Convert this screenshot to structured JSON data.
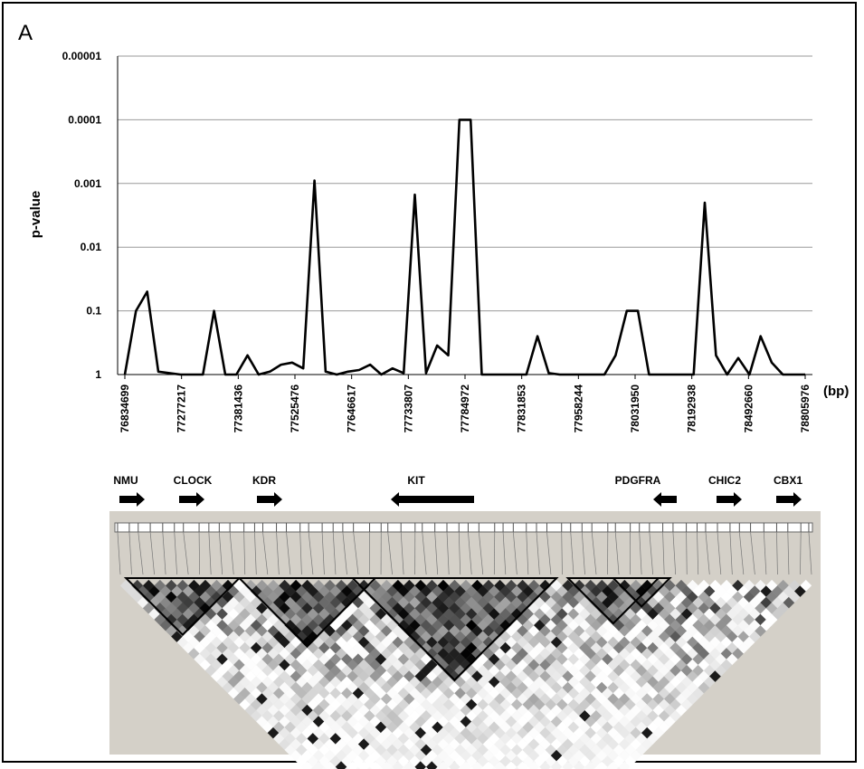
{
  "panel_label": "A",
  "chart_data": {
    "type": "line",
    "ylabel": "p-value",
    "xlabel": "(bp)",
    "y_scale": "log-reversed",
    "ylim": [
      1,
      1e-05
    ],
    "y_ticks": [
      "0.00001",
      "0.0001",
      "0.001",
      "0.01",
      "0.1",
      "1"
    ],
    "grid": true,
    "x_tick_labels": [
      "76834699",
      "77277217",
      "77381436",
      "77525476",
      "77646617",
      "77733807",
      "77784972",
      "77831853",
      "77958244",
      "78031950",
      "78192938",
      "78492660",
      "78805976"
    ],
    "series": [
      {
        "name": "",
        "values": [
          1,
          0.1,
          0.05,
          0.9,
          0.95,
          1,
          1,
          1,
          0.1,
          1,
          1,
          0.5,
          1,
          0.9,
          0.7,
          0.65,
          0.8,
          0.0009,
          0.9,
          1,
          0.9,
          0.85,
          0.7,
          1,
          0.8,
          0.95,
          0.0015,
          0.95,
          0.35,
          0.5,
          0.0001,
          0.0001,
          1,
          1,
          1,
          1,
          1,
          0.25,
          0.95,
          1,
          1,
          1,
          1,
          1,
          0.5,
          0.1,
          0.1,
          1,
          1,
          1,
          1,
          1,
          0.002,
          0.5,
          1,
          0.55,
          1,
          0.25,
          0.65,
          1,
          1,
          1
        ]
      }
    ]
  },
  "genes": [
    {
      "name": "NMU",
      "direction": "right"
    },
    {
      "name": "CLOCK",
      "direction": "right"
    },
    {
      "name": "KDR",
      "direction": "right"
    },
    {
      "name": "KIT",
      "direction": "left"
    },
    {
      "name": "PDGFRA",
      "direction": "left"
    },
    {
      "name": "CHIC2",
      "direction": "right"
    },
    {
      "name": "CBX1",
      "direction": "right"
    }
  ],
  "ld_plot": {
    "background": "#d4d0c8",
    "marker_count": 62,
    "blocks": 5
  }
}
